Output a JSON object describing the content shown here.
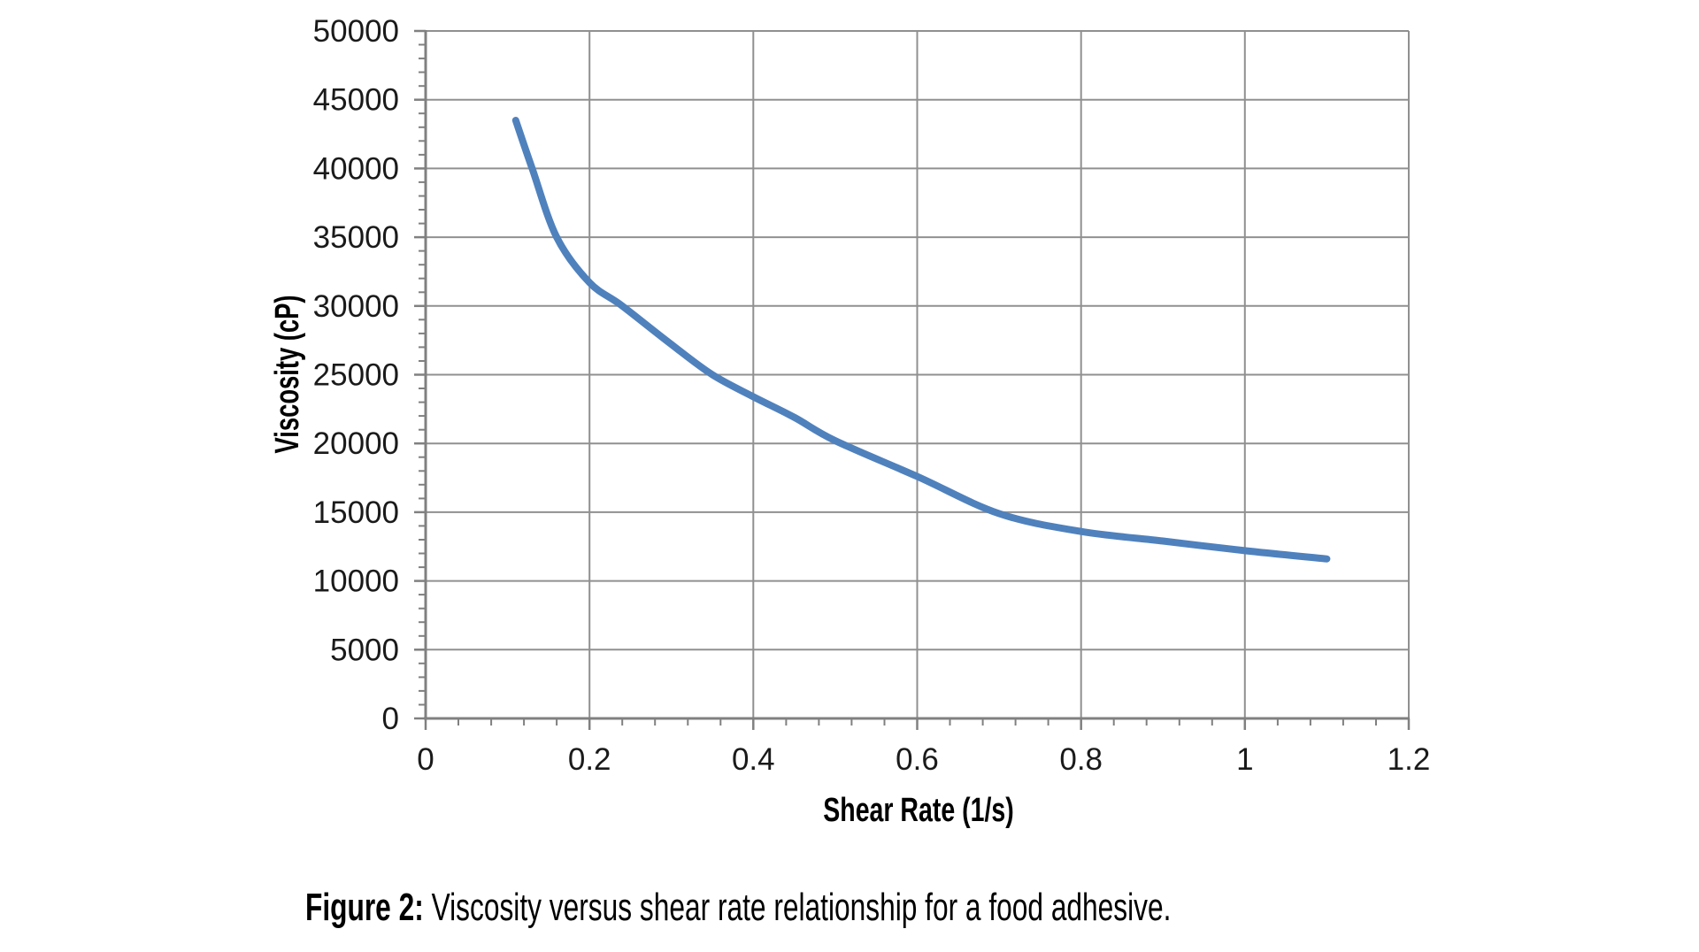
{
  "chart_data": {
    "type": "line",
    "title": "",
    "xlabel": "Shear Rate (1/s)",
    "ylabel": "Viscosity (cP)",
    "xlim": [
      0,
      1.2
    ],
    "ylim": [
      0,
      50000
    ],
    "grid": true,
    "legend": "none",
    "x_ticks": [
      {
        "value": 0,
        "label": "0"
      },
      {
        "value": 0.2,
        "label": "0.2"
      },
      {
        "value": 0.4,
        "label": "0.4"
      },
      {
        "value": 0.6,
        "label": "0.6"
      },
      {
        "value": 0.8,
        "label": "0.8"
      },
      {
        "value": 1,
        "label": "1"
      },
      {
        "value": 1.2,
        "label": "1.2"
      }
    ],
    "y_ticks": [
      {
        "value": 0,
        "label": "0"
      },
      {
        "value": 5000,
        "label": "5000"
      },
      {
        "value": 10000,
        "label": "10000"
      },
      {
        "value": 15000,
        "label": "15000"
      },
      {
        "value": 20000,
        "label": "20000"
      },
      {
        "value": 25000,
        "label": "25000"
      },
      {
        "value": 30000,
        "label": "30000"
      },
      {
        "value": 35000,
        "label": "35000"
      },
      {
        "value": 40000,
        "label": "40000"
      },
      {
        "value": 45000,
        "label": "45000"
      },
      {
        "value": 50000,
        "label": "50000"
      }
    ],
    "x_minor_step": 0.04,
    "x_major_step": 0.2,
    "y_minor_step": 1000,
    "y_major_step": 5000,
    "series": [
      {
        "name": "viscosity-vs-shear-rate",
        "color": "#4f81bd",
        "points": [
          [
            0.11,
            43500
          ],
          [
            0.13,
            40000
          ],
          [
            0.16,
            35000
          ],
          [
            0.2,
            31700
          ],
          [
            0.24,
            30000
          ],
          [
            0.3,
            27200
          ],
          [
            0.35,
            25000
          ],
          [
            0.4,
            23400
          ],
          [
            0.45,
            21900
          ],
          [
            0.5,
            20200
          ],
          [
            0.6,
            17600
          ],
          [
            0.7,
            14900
          ],
          [
            0.8,
            13600
          ],
          [
            0.9,
            12900
          ],
          [
            1.0,
            12200
          ],
          [
            1.1,
            11600
          ]
        ]
      }
    ]
  },
  "caption": {
    "prefix": "Figure 2:",
    "text": " Viscosity versus shear rate relationship for a food adhesive."
  },
  "colors": {
    "gridline": "#909090",
    "axis": "#808080",
    "tick": "#808080",
    "tick_label": "#1a1a1a",
    "curve": "#4f81bd",
    "background": "#ffffff"
  }
}
